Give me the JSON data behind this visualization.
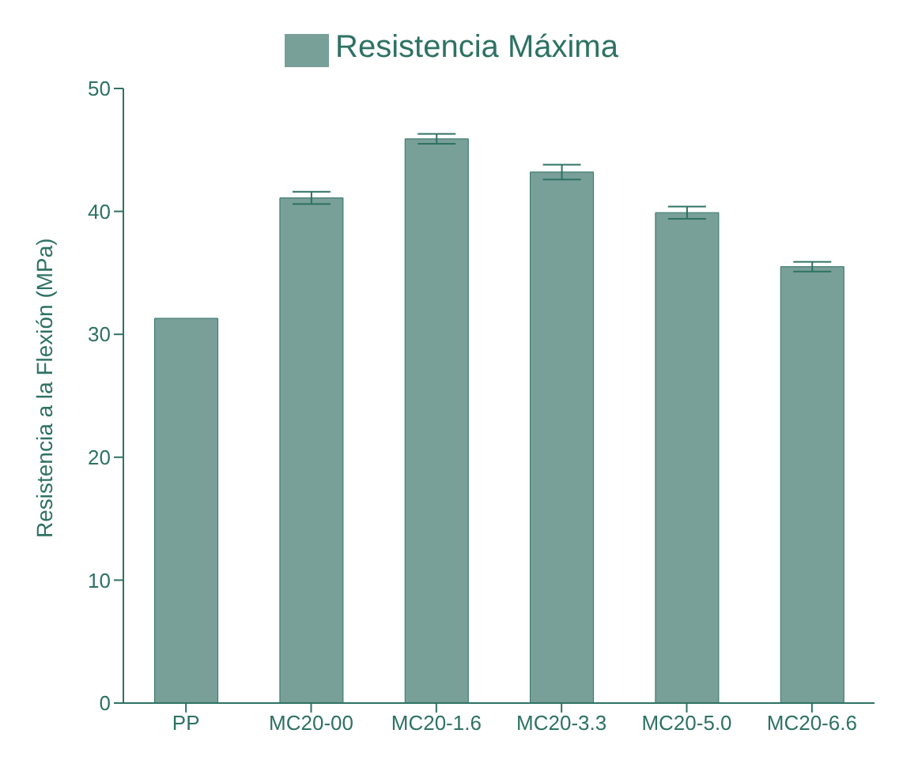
{
  "chart_data": {
    "type": "bar",
    "ylabel": "Resistencia a la  Flexión (MPa)",
    "categories": [
      "PP",
      "MC20-00",
      "MC20-1.6",
      "MC20-3.3",
      "MC20-5.0",
      "MC20-6.6"
    ],
    "series": [
      {
        "name": "Resistencia Máxima",
        "color": "#789f98",
        "values": [
          31.3,
          41.1,
          45.9,
          43.2,
          39.9,
          35.5
        ],
        "errors": [
          null,
          0.5,
          0.4,
          0.6,
          0.5,
          0.4
        ]
      }
    ],
    "ylim": [
      0,
      50
    ],
    "yticks": [
      0,
      10,
      20,
      30,
      40,
      50
    ],
    "legend": "top",
    "grid": false
  }
}
